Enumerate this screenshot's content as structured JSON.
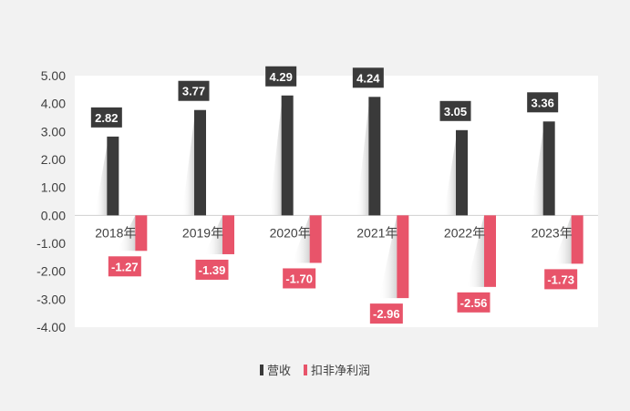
{
  "chart_data": {
    "type": "bar",
    "categories": [
      "2018年",
      "2019年",
      "2020年",
      "2021年",
      "2022年",
      "2023年"
    ],
    "series": [
      {
        "name": "营收",
        "values": [
          2.82,
          3.77,
          4.29,
          4.24,
          3.05,
          3.36
        ],
        "color": "#3a3a3a"
      },
      {
        "name": "扣非净利润",
        "values": [
          -1.27,
          -1.39,
          -1.7,
          -2.96,
          -2.56,
          -1.73
        ],
        "color": "#e8546a"
      }
    ],
    "yticks": [
      "5.00",
      "4.00",
      "3.00",
      "2.00",
      "1.00",
      "0.00",
      "-1.00",
      "-2.00",
      "-3.00",
      "-4.00"
    ],
    "ylim": [
      -4,
      5
    ],
    "legend": "bottom",
    "grid": false
  }
}
